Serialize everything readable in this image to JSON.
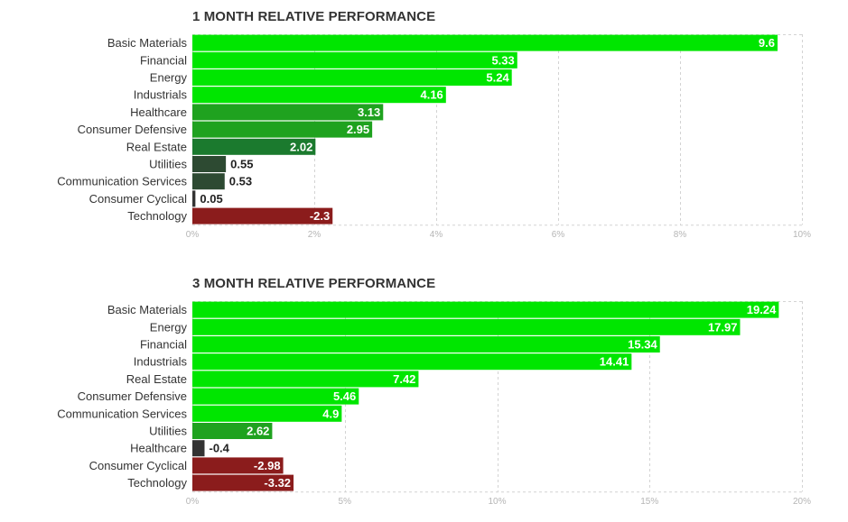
{
  "chart_data": [
    {
      "type": "bar",
      "orientation": "horizontal",
      "title": "1 MONTH RELATIVE PERFORMANCE",
      "categories": [
        "Basic Materials",
        "Financial",
        "Energy",
        "Industrials",
        "Healthcare",
        "Consumer Defensive",
        "Real Estate",
        "Utilities",
        "Communication Services",
        "Consumer Cyclical",
        "Technology"
      ],
      "values": [
        9.6,
        5.33,
        5.24,
        4.16,
        3.13,
        2.95,
        2.02,
        0.55,
        0.53,
        0.05,
        -2.3
      ],
      "value_labels": [
        "9.6",
        "5.33",
        "5.24",
        "4.16",
        "3.13",
        "2.95",
        "2.02",
        "0.55",
        "0.53",
        "0.05",
        "-2.3"
      ],
      "xlim": [
        0,
        10
      ],
      "xticks": [
        0,
        2,
        4,
        6,
        8,
        10
      ],
      "xtick_labels": [
        "0%",
        "2%",
        "4%",
        "6%",
        "8%",
        "10%"
      ],
      "xlabel": "",
      "ylabel": "",
      "grid": true
    },
    {
      "type": "bar",
      "orientation": "horizontal",
      "title": "3 MONTH RELATIVE PERFORMANCE",
      "categories": [
        "Basic Materials",
        "Energy",
        "Financial",
        "Industrials",
        "Real Estate",
        "Consumer Defensive",
        "Communication Services",
        "Utilities",
        "Healthcare",
        "Consumer Cyclical",
        "Technology"
      ],
      "values": [
        19.24,
        17.97,
        15.34,
        14.41,
        7.42,
        5.46,
        4.9,
        2.62,
        -0.4,
        -2.98,
        -3.32
      ],
      "value_labels": [
        "19.24",
        "17.97",
        "15.34",
        "14.41",
        "7.42",
        "5.46",
        "4.9",
        "2.62",
        "-0.4",
        "-2.98",
        "-3.32"
      ],
      "xlim": [
        0,
        20
      ],
      "xticks": [
        0,
        5,
        10,
        15,
        20
      ],
      "xtick_labels": [
        "0%",
        "5%",
        "10%",
        "15%",
        "20%"
      ],
      "xlabel": "",
      "ylabel": "",
      "grid": true
    }
  ],
  "colors": {
    "positive_strong": "#00e600",
    "positive_medium": "#1fa21f",
    "positive_weak": "#1b7a2e",
    "positive_faint": "#2d4a32",
    "negative_faint": "#333333",
    "negative": "#8b1c1c",
    "grid": "#d3d3d3",
    "label_inside": "#ffffff",
    "label_outside": "#222222"
  }
}
